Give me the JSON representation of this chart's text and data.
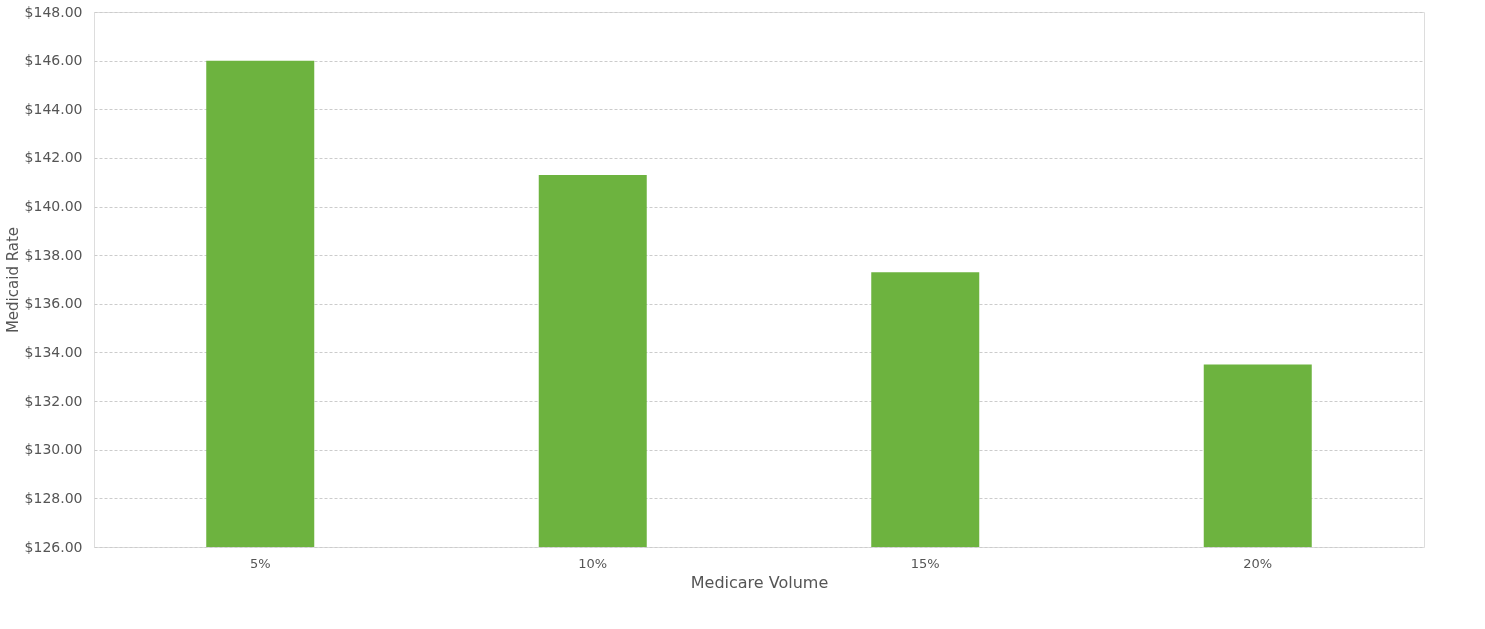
{
  "chart_data": {
    "type": "bar",
    "xlabel": "Medicare Volume",
    "ylabel": "Medicaid Rate",
    "categories": [
      "5%",
      "10%",
      "15%",
      "20%"
    ],
    "values": [
      146.0,
      141.3,
      137.3,
      133.5
    ],
    "color": "#6db33f",
    "ylim": [
      126,
      148
    ],
    "yticks": [
      {
        "value": 126,
        "label": "$126.00"
      },
      {
        "value": 128,
        "label": "$128.00"
      },
      {
        "value": 130,
        "label": "$130.00"
      },
      {
        "value": 132,
        "label": "$132.00"
      },
      {
        "value": 134,
        "label": "$134.00"
      },
      {
        "value": 136,
        "label": "$136.00"
      },
      {
        "value": 138,
        "label": "$138.00"
      },
      {
        "value": 140,
        "label": "$140.00"
      },
      {
        "value": 142,
        "label": "$142.00"
      },
      {
        "value": 144,
        "label": "$144.00"
      },
      {
        "value": 146,
        "label": "$146.00"
      },
      {
        "value": 148,
        "label": "$148.00"
      }
    ],
    "grid": "y"
  }
}
